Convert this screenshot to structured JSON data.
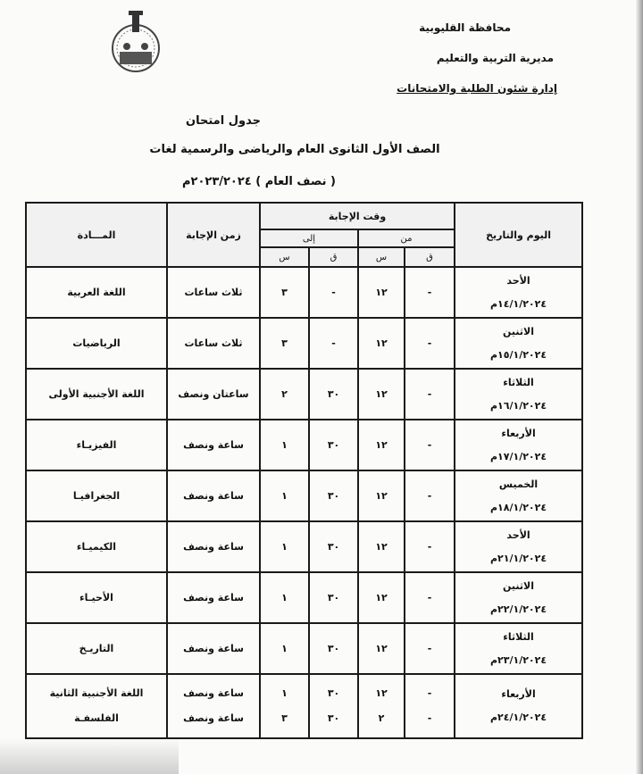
{
  "header": {
    "governorate": "محافظة القليوبية",
    "directorate": "مديرية التربية والتعليم",
    "department": "إدارة شئون الطلبة والامتحانات"
  },
  "title": {
    "main": "جدول امتحان",
    "grade": "الصف الأول الثانوى العام والرياضى والرسمية لغات",
    "term": "( نصف العام ) ٢٠٢٣/٢٠٢٤م"
  },
  "table": {
    "headers": {
      "day_date": "اليوم والتاريخ",
      "answer_time": "وقت الإجابة",
      "from": "من",
      "to": "إلى",
      "minute": "ق",
      "hour": "س",
      "duration": "زمن الإجابة",
      "subject": "المـــادة"
    },
    "rows": [
      {
        "day": "الأحد",
        "date": "١٤/١/٢٠٢٤م",
        "sessions": [
          {
            "from_q": "-",
            "from_s": "١٢",
            "to_q": "-",
            "to_s": "٣",
            "duration": "ثلاث ساعات",
            "subject": "اللغة العربية"
          }
        ]
      },
      {
        "day": "الاثنين",
        "date": "١٥/١/٢٠٢٤م",
        "sessions": [
          {
            "from_q": "-",
            "from_s": "١٢",
            "to_q": "-",
            "to_s": "٣",
            "duration": "ثلاث ساعات",
            "subject": "الرياضيات"
          }
        ]
      },
      {
        "day": "الثلاثاء",
        "date": "١٦/١/٢٠٢٤م",
        "sessions": [
          {
            "from_q": "-",
            "from_s": "١٢",
            "to_q": "٣٠",
            "to_s": "٢",
            "duration": "ساعتان ونصف",
            "subject": "اللغة الأجنبية الأولى"
          }
        ]
      },
      {
        "day": "الأربعاء",
        "date": "١٧/١/٢٠٢٤م",
        "sessions": [
          {
            "from_q": "-",
            "from_s": "١٢",
            "to_q": "٣٠",
            "to_s": "١",
            "duration": "ساعة ونصف",
            "subject": "الفيزيـاء"
          }
        ]
      },
      {
        "day": "الخميس",
        "date": "١٨/١/٢٠٢٤م",
        "sessions": [
          {
            "from_q": "-",
            "from_s": "١٢",
            "to_q": "٣٠",
            "to_s": "١",
            "duration": "ساعة ونصف",
            "subject": "الجغرافيـا"
          }
        ]
      },
      {
        "day": "الأحد",
        "date": "٢١/١/٢٠٢٤م",
        "sessions": [
          {
            "from_q": "-",
            "from_s": "١٢",
            "to_q": "٣٠",
            "to_s": "١",
            "duration": "ساعة ونصف",
            "subject": "الكيميـاء"
          }
        ]
      },
      {
        "day": "الاثنين",
        "date": "٢٢/١/٢٠٢٤م",
        "sessions": [
          {
            "from_q": "-",
            "from_s": "١٢",
            "to_q": "٣٠",
            "to_s": "١",
            "duration": "ساعة ونصف",
            "subject": "الأحيـاء"
          }
        ]
      },
      {
        "day": "الثلاثاء",
        "date": "٢٣/١/٢٠٢٤م",
        "sessions": [
          {
            "from_q": "-",
            "from_s": "١٢",
            "to_q": "٣٠",
            "to_s": "١",
            "duration": "ساعة ونصف",
            "subject": "التاريـخ"
          }
        ]
      },
      {
        "day": "الأربعاء",
        "date": "٢٤/١/٢٠٢٤م",
        "sessions": [
          {
            "from_q": "-",
            "from_s": "١٢",
            "to_q": "٣٠",
            "to_s": "١",
            "duration": "ساعة ونصف",
            "subject": "اللغة الأجنبية الثانية"
          },
          {
            "from_q": "-",
            "from_s": "٢",
            "to_q": "٣٠",
            "to_s": "٣",
            "duration": "ساعة ونصف",
            "subject": "الفلسفـة"
          }
        ]
      }
    ]
  }
}
